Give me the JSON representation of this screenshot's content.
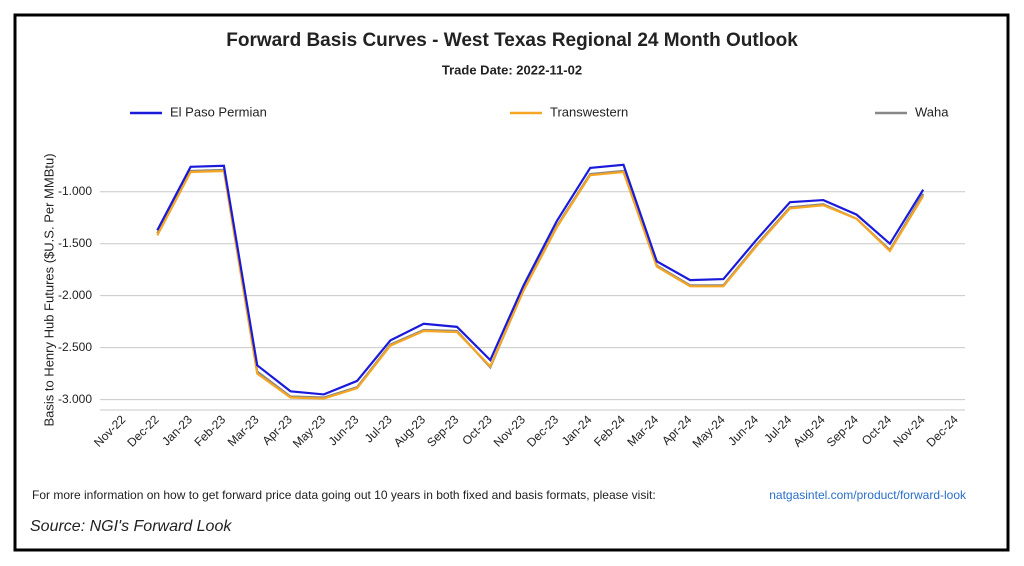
{
  "chart_data": {
    "type": "line",
    "title": "Forward Basis Curves - West Texas Regional 24 Month Outlook",
    "subtitle": "Trade Date: 2022-11-02",
    "y_label": "Basis to Henry Hub Futures ($U.S. Per MMBtu)",
    "footer_text": "For more information on how to get forward price data going out 10 years in both fixed and basis formats, please visit:",
    "footer_link": "natgasintel.com/product/forward-look",
    "source": "Source: NGI's Forward Look",
    "categories": [
      "Nov-22",
      "Dec-22",
      "Jan-23",
      "Feb-23",
      "Mar-23",
      "Apr-23",
      "May-23",
      "Jun-23",
      "Jul-23",
      "Aug-23",
      "Sep-23",
      "Oct-23",
      "Nov-23",
      "Dec-23",
      "Jan-24",
      "Feb-24",
      "Mar-24",
      "Apr-24",
      "May-24",
      "Jun-24",
      "Jul-24",
      "Aug-24",
      "Sep-24",
      "Oct-24",
      "Nov-24",
      "Dec-24"
    ],
    "series": [
      {
        "name": "Waha",
        "color": "#888888",
        "values": [
          null,
          -1.4,
          -0.8,
          -0.79,
          -2.73,
          -2.97,
          -2.98,
          -2.88,
          -2.47,
          -2.33,
          -2.34,
          -2.69,
          -1.94,
          -1.33,
          -0.83,
          -0.8,
          -1.71,
          -1.9,
          -1.9,
          -1.51,
          -1.15,
          -1.12,
          -1.26,
          -1.56,
          -1.02,
          null
        ]
      },
      {
        "name": "Transwestern",
        "color": "#f5a623",
        "values": [
          null,
          -1.42,
          -0.81,
          -0.8,
          -2.75,
          -2.98,
          -2.99,
          -2.89,
          -2.48,
          -2.34,
          -2.35,
          -2.68,
          -1.95,
          -1.34,
          -0.84,
          -0.81,
          -1.72,
          -1.91,
          -1.91,
          -1.52,
          -1.16,
          -1.13,
          -1.26,
          -1.57,
          -1.04,
          null
        ]
      },
      {
        "name": "El Paso Permian",
        "color": "#1a1adb",
        "values": [
          null,
          -1.37,
          -0.76,
          -0.75,
          -2.67,
          -2.92,
          -2.95,
          -2.82,
          -2.43,
          -2.27,
          -2.3,
          -2.62,
          -1.9,
          -1.28,
          -0.77,
          -0.74,
          -1.67,
          -1.85,
          -1.84,
          -1.46,
          -1.1,
          -1.08,
          -1.22,
          -1.5,
          -0.98,
          null
        ]
      }
    ],
    "ylim": [
      -3.1,
      -0.55
    ],
    "yticks": [
      {
        "value": -3,
        "label": "-3.000"
      },
      {
        "value": -2.5,
        "label": "-2.500"
      },
      {
        "value": -2,
        "label": "-2.000"
      },
      {
        "value": -1.5,
        "label": "-1.500"
      },
      {
        "value": -1,
        "label": "-1.000"
      }
    ],
    "grid": true
  }
}
